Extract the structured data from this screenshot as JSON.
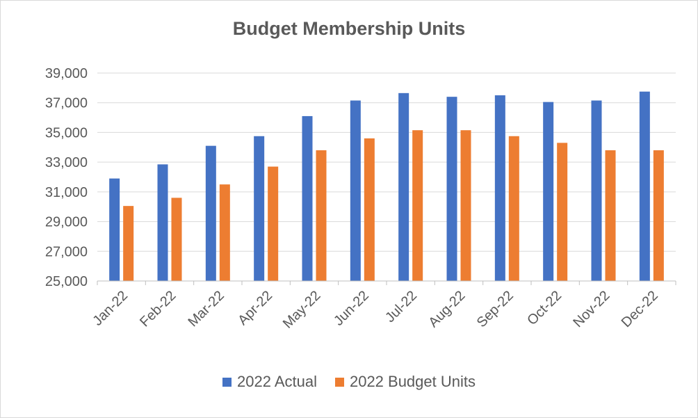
{
  "chart_data": {
    "type": "bar",
    "title": "Budget Membership Units",
    "categories": [
      "Jan-22",
      "Feb-22",
      "Mar-22",
      "Apr-22",
      "May-22",
      "Jun-22",
      "Jul-22",
      "Aug-22",
      "Sep-22",
      "Oct-22",
      "Nov-22",
      "Dec-22"
    ],
    "series": [
      {
        "name": "2022 Actual",
        "color": "#4472c4",
        "values": [
          31900,
          32850,
          34100,
          34750,
          36100,
          37150,
          37650,
          37400,
          37500,
          37050,
          37150,
          37750
        ]
      },
      {
        "name": "2022 Budget Units",
        "color": "#ed7d31",
        "values": [
          30050,
          30600,
          31500,
          32700,
          33800,
          34600,
          35150,
          35150,
          34750,
          34300,
          33800,
          33800
        ]
      }
    ],
    "ylim": [
      25000,
      39000
    ],
    "yticks": [
      "25,000",
      "27,000",
      "29,000",
      "31,000",
      "33,000",
      "35,000",
      "37,000",
      "39,000"
    ],
    "ytick_values": [
      25000,
      27000,
      29000,
      31000,
      33000,
      35000,
      37000,
      39000
    ],
    "grid": true,
    "legend_position": "bottom"
  }
}
